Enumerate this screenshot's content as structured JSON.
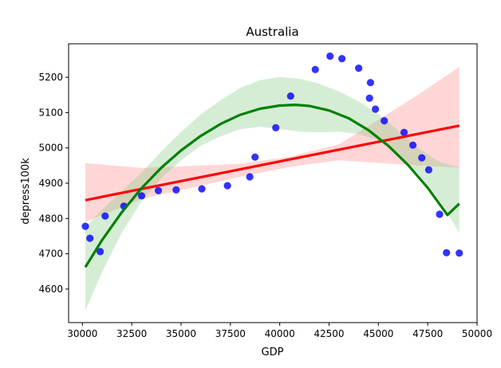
{
  "chart_data": {
    "type": "scatter",
    "title": "Australia",
    "xlabel": "GDP",
    "ylabel": "depress100k",
    "xlim": [
      29300,
      50000
    ],
    "ylim": [
      4505,
      5295
    ],
    "xticks": [
      30000,
      32500,
      35000,
      37500,
      40000,
      42500,
      45000,
      47500,
      50000
    ],
    "xtick_labels": [
      "30000",
      "32500",
      "35000",
      "37500",
      "40000",
      "42500",
      "45000",
      "47500",
      "50000"
    ],
    "yticks": [
      4600,
      4700,
      4800,
      4900,
      5000,
      5100,
      5200
    ],
    "ytick_labels": [
      "4600",
      "4700",
      "4800",
      "4900",
      "5000",
      "5100",
      "5200"
    ],
    "grid": false,
    "colors": {
      "points": "#0000ff",
      "linear_fit": "#ff0000",
      "linear_band": "#ff9999",
      "quadratic_fit": "#008000",
      "quadratic_band": "#88cc88"
    },
    "points": {
      "x": [
        30150,
        30380,
        30900,
        31150,
        32100,
        33000,
        33850,
        34750,
        36050,
        37350,
        38480,
        38750,
        39800,
        40550,
        41800,
        42550,
        43150,
        44000,
        44550,
        44600,
        44850,
        45300,
        46300,
        46750,
        47200,
        47550,
        48100,
        48450,
        49100
      ],
      "y": [
        4778,
        4744,
        4706,
        4807,
        4835,
        4864,
        4879,
        4881,
        4884,
        4893,
        4918,
        4974,
        5057,
        5147,
        5222,
        5260,
        5253,
        5226,
        5141,
        5185,
        5110,
        5077,
        5044,
        5008,
        4972,
        4938,
        4812,
        4703,
        4702
      ]
    },
    "linear_fit": {
      "x_start": 30150,
      "x_end": 49100,
      "y_start": 4852,
      "y_end": 5063,
      "band_lower": [
        [
          30150,
          4790
        ],
        [
          33000,
          4855
        ],
        [
          38000,
          4918
        ],
        [
          40500,
          4946
        ],
        [
          43000,
          4965
        ],
        [
          47000,
          4950
        ],
        [
          49100,
          4944
        ]
      ],
      "band_upper": [
        [
          30150,
          4957
        ],
        [
          33000,
          4943
        ],
        [
          38000,
          4955
        ],
        [
          40500,
          4975
        ],
        [
          43000,
          5010
        ],
        [
          47000,
          5150
        ],
        [
          49100,
          5230
        ]
      ]
    },
    "quadratic_fit": {
      "curve": [
        [
          30150,
          4662
        ],
        [
          31000,
          4739
        ],
        [
          32000,
          4818
        ],
        [
          33000,
          4886
        ],
        [
          34000,
          4944
        ],
        [
          35000,
          4993
        ],
        [
          36000,
          5034
        ],
        [
          37000,
          5068
        ],
        [
          38000,
          5094
        ],
        [
          39000,
          5111
        ],
        [
          40000,
          5120
        ],
        [
          40800,
          5122
        ],
        [
          41500,
          5119
        ],
        [
          42500,
          5106
        ],
        [
          43500,
          5084
        ],
        [
          44500,
          5050
        ],
        [
          45500,
          5006
        ],
        [
          46500,
          4952
        ],
        [
          47500,
          4887
        ],
        [
          48500,
          4810
        ],
        [
          49100,
          4842
        ]
      ],
      "band_lower": [
        [
          30150,
          4540
        ],
        [
          31000,
          4648
        ],
        [
          32000,
          4760
        ],
        [
          33000,
          4848
        ],
        [
          34000,
          4914
        ],
        [
          35000,
          4965
        ],
        [
          36000,
          5006
        ],
        [
          37000,
          5033
        ],
        [
          38000,
          5053
        ],
        [
          39000,
          5060
        ],
        [
          40000,
          5054
        ],
        [
          41000,
          5046
        ],
        [
          42000,
          5044
        ],
        [
          43000,
          5046
        ],
        [
          44000,
          5040
        ],
        [
          45000,
          5021
        ],
        [
          46000,
          4983
        ],
        [
          47000,
          4928
        ],
        [
          48000,
          4860
        ],
        [
          49100,
          4760
        ]
      ],
      "band_upper": [
        [
          30150,
          4775
        ],
        [
          31000,
          4825
        ],
        [
          32000,
          4878
        ],
        [
          33000,
          4930
        ],
        [
          34000,
          4990
        ],
        [
          35000,
          5045
        ],
        [
          36000,
          5095
        ],
        [
          37000,
          5135
        ],
        [
          38000,
          5170
        ],
        [
          39000,
          5192
        ],
        [
          40000,
          5201
        ],
        [
          41000,
          5196
        ],
        [
          42000,
          5182
        ],
        [
          43000,
          5160
        ],
        [
          44000,
          5132
        ],
        [
          45000,
          5096
        ],
        [
          46000,
          5050
        ],
        [
          47000,
          5001
        ],
        [
          48000,
          4963
        ],
        [
          49100,
          4945
        ]
      ]
    }
  }
}
